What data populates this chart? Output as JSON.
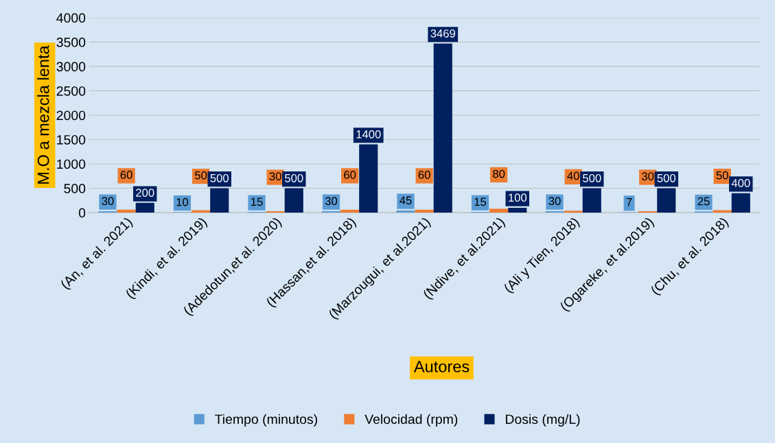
{
  "chart_data": {
    "type": "bar",
    "categories": [
      "(An, et al. 2021)",
      "(Kindi, et al. 2019)",
      "(Adedotun,et al. 2020)",
      "(Hassan,et al. 2018)",
      "(Marzougui, et al.2021)",
      "(Ndive, et al.2021)",
      "(Ali y Tien, 2018)",
      "(Ogareke, et al.2019)",
      "(Chu, et al. 2018)"
    ],
    "series": [
      {
        "name": "Tiempo (minutos)",
        "color": "#5b9bd5",
        "values": [
          30,
          10,
          15,
          30,
          45,
          15,
          30,
          7,
          25
        ]
      },
      {
        "name": "Velocidad (rpm)",
        "color": "#ed7d31",
        "values": [
          60,
          50,
          30,
          60,
          60,
          80,
          40,
          30,
          50
        ]
      },
      {
        "name": "Dosis (mg/L)",
        "color": "#002060",
        "values": [
          200,
          500,
          500,
          1400,
          3469,
          100,
          500,
          500,
          400
        ]
      }
    ],
    "xlabel": "Autores",
    "ylabel": "M.O a mezcla lenta",
    "ylim": [
      0,
      4000
    ],
    "yticks": [
      0,
      500,
      1000,
      1500,
      2000,
      2500,
      3000,
      3500,
      4000
    ],
    "grid": "y",
    "legend": "bottom",
    "data_labels": true
  }
}
